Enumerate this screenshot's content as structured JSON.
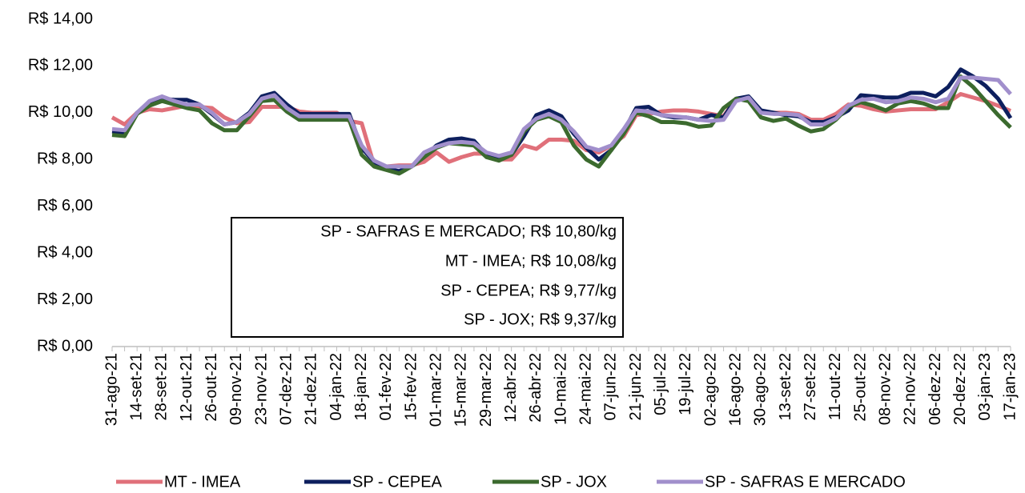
{
  "chart_data": {
    "type": "line",
    "categories": [
      "31-ago-21",
      null,
      "14-set-21",
      null,
      "28-set-21",
      null,
      "12-out-21",
      null,
      "26-out-21",
      null,
      "09-nov-21",
      null,
      "23-nov-21",
      null,
      "07-dez-21",
      null,
      "21-dez-21",
      null,
      "04-jan-22",
      null,
      "18-jan-22",
      null,
      "01-fev-22",
      null,
      "15-fev-22",
      null,
      "01-mar-22",
      null,
      "15-mar-22",
      null,
      "29-mar-22",
      null,
      "12-abr-22",
      null,
      "26-abr-22",
      null,
      "10-mai-22",
      null,
      "24-mai-22",
      null,
      "07-jun-22",
      null,
      "21-jun-22",
      null,
      "05-jul-22",
      null,
      "19-jul-22",
      null,
      "02-ago-22",
      null,
      "16-ago-22",
      null,
      "30-ago-22",
      null,
      "13-set-22",
      null,
      "27-set-22",
      null,
      "11-out-22",
      null,
      "25-out-22",
      null,
      "08-nov-22",
      null,
      "22-nov-22",
      null,
      "06-dez-22",
      null,
      "20-dez-22",
      null,
      "03-jan-23",
      null,
      "17-jan-23"
    ],
    "series": [
      {
        "name": "MT - IMEA",
        "color": "#e0707a",
        "values": [
          9.8,
          9.5,
          10.0,
          10.15,
          10.1,
          10.2,
          10.3,
          10.25,
          10.2,
          9.8,
          9.55,
          9.6,
          10.25,
          10.25,
          10.25,
          10.05,
          10.0,
          10.0,
          10.0,
          9.65,
          9.55,
          7.75,
          7.7,
          7.75,
          7.75,
          7.9,
          8.3,
          7.9,
          8.1,
          8.25,
          8.25,
          8.0,
          8.0,
          8.6,
          8.45,
          8.85,
          8.85,
          8.8,
          8.4,
          8.3,
          8.6,
          9.0,
          9.9,
          9.95,
          10.05,
          10.1,
          10.1,
          10.05,
          9.95,
          9.85,
          10.6,
          10.65,
          10.05,
          10.0,
          10.0,
          9.95,
          9.7,
          9.7,
          9.95,
          10.35,
          10.3,
          10.15,
          10.05,
          10.1,
          10.15,
          10.15,
          10.15,
          10.45,
          10.8,
          10.65,
          10.5,
          10.3,
          10.08
        ]
      },
      {
        "name": "SP - CEPEA",
        "color": "#0d1f5e",
        "values": [
          9.2,
          9.15,
          10.0,
          10.45,
          10.6,
          10.55,
          10.55,
          10.35,
          9.95,
          9.5,
          9.6,
          10.0,
          10.7,
          10.85,
          10.35,
          9.95,
          9.95,
          9.95,
          9.95,
          9.95,
          8.5,
          7.9,
          7.6,
          7.5,
          7.7,
          8.1,
          8.6,
          8.85,
          8.9,
          8.8,
          8.2,
          8.0,
          8.2,
          9.0,
          9.9,
          10.1,
          9.85,
          9.1,
          8.5,
          8.0,
          8.4,
          9.2,
          10.2,
          10.25,
          9.9,
          9.8,
          9.8,
          9.7,
          9.9,
          9.8,
          10.6,
          10.7,
          10.1,
          10.0,
          9.9,
          9.85,
          9.6,
          9.6,
          9.8,
          10.1,
          10.75,
          10.7,
          10.65,
          10.65,
          10.85,
          10.85,
          10.7,
          11.1,
          11.85,
          11.55,
          11.15,
          10.6,
          9.77
        ]
      },
      {
        "name": "SP - JOX",
        "color": "#3b6a2e",
        "values": [
          9.05,
          9.0,
          9.95,
          10.3,
          10.5,
          10.35,
          10.2,
          10.1,
          9.55,
          9.25,
          9.25,
          9.85,
          10.5,
          10.55,
          10.05,
          9.7,
          9.7,
          9.7,
          9.7,
          9.7,
          8.2,
          7.7,
          7.55,
          7.4,
          7.7,
          8.1,
          8.5,
          8.7,
          8.65,
          8.6,
          8.1,
          7.95,
          8.2,
          9.2,
          9.7,
          9.85,
          9.6,
          8.6,
          8.0,
          7.7,
          8.4,
          9.1,
          10.0,
          9.85,
          9.6,
          9.6,
          9.55,
          9.4,
          9.45,
          10.2,
          10.6,
          10.5,
          9.8,
          9.65,
          9.75,
          9.45,
          9.2,
          9.3,
          9.7,
          10.25,
          10.45,
          10.3,
          10.1,
          10.4,
          10.5,
          10.4,
          10.2,
          10.2,
          11.55,
          11.1,
          10.5,
          9.9,
          9.37
        ]
      },
      {
        "name": "SP - SAFRAS E MERCADO",
        "color": "#a18fcc",
        "values": [
          9.3,
          9.25,
          10.0,
          10.5,
          10.7,
          10.5,
          10.35,
          10.35,
          10.0,
          9.5,
          9.6,
          9.95,
          10.6,
          10.75,
          10.2,
          9.85,
          9.85,
          9.85,
          9.85,
          9.85,
          8.6,
          7.95,
          7.7,
          7.7,
          7.7,
          8.3,
          8.55,
          8.7,
          8.75,
          8.7,
          8.3,
          8.15,
          8.3,
          9.3,
          9.75,
          9.95,
          9.7,
          9.2,
          8.55,
          8.4,
          8.6,
          9.3,
          10.1,
          10.05,
          9.9,
          9.85,
          9.8,
          9.7,
          9.65,
          9.7,
          10.5,
          10.65,
          10.0,
          9.95,
          9.95,
          9.9,
          9.5,
          9.5,
          9.75,
          10.3,
          10.55,
          10.6,
          10.45,
          10.5,
          10.65,
          10.6,
          10.45,
          10.6,
          11.5,
          11.5,
          11.45,
          11.4,
          10.8
        ]
      }
    ],
    "ylim": [
      0,
      14
    ],
    "yticks": [
      {
        "value": 0,
        "label": "R$ 0,00"
      },
      {
        "value": 2,
        "label": "R$ 2,00"
      },
      {
        "value": 4,
        "label": "R$ 4,00"
      },
      {
        "value": 6,
        "label": "R$ 6,00"
      },
      {
        "value": 8,
        "label": "R$ 8,00"
      },
      {
        "value": 10,
        "label": "R$ 10,00"
      },
      {
        "value": 12,
        "label": "R$ 12,00"
      },
      {
        "value": 14,
        "label": "R$ 14,00"
      }
    ],
    "grid": false,
    "legend": "bottom",
    "annotations": [
      "SP - SAFRAS E MERCADO; R$ 10,80/kg",
      "MT - IMEA; R$ 10,08/kg",
      "SP - CEPEA; R$ 9,77/kg",
      "SP - JOX; R$ 9,37/kg"
    ]
  }
}
